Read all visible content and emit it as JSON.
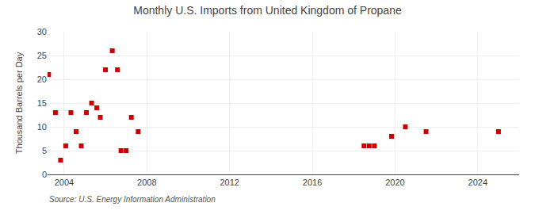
{
  "chart_data": {
    "type": "scatter",
    "title": "Monthly U.S. Imports from United Kingdom of Propane",
    "ylabel": "Thousand Barrels per Day",
    "annotations": [
      "Source: U.S. Energy Information Administration"
    ],
    "x": [
      2003.25,
      2003.58,
      2003.83,
      2004.08,
      2004.33,
      2004.58,
      2004.83,
      2005.08,
      2005.33,
      2005.58,
      2005.75,
      2006.0,
      2006.33,
      2006.58,
      2006.75,
      2007.0,
      2007.25,
      2007.58,
      2018.5,
      2018.75,
      2019.0,
      2019.83,
      2020.5,
      2021.5,
      2025.0
    ],
    "values": [
      21,
      13,
      3,
      6,
      13,
      9,
      6,
      13,
      15,
      14,
      12,
      22,
      26,
      22,
      5,
      5,
      12,
      9,
      6,
      6,
      6,
      8,
      10,
      9,
      9
    ],
    "color": "#cc0000",
    "marker": "square",
    "xlim": [
      2003.2,
      2026.0
    ],
    "xticks": [
      2004,
      2008,
      2012,
      2016,
      2020,
      2024
    ],
    "ylim": [
      0,
      30
    ],
    "yticks": [
      0,
      5,
      10,
      15,
      20,
      25,
      30
    ],
    "grid": true
  }
}
